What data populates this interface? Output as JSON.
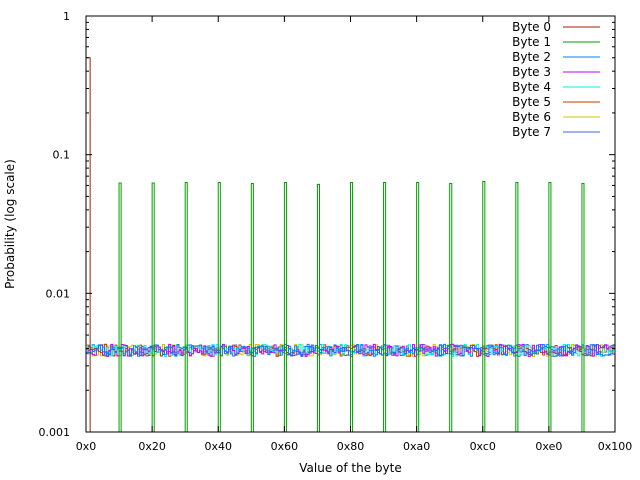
{
  "chart_data": {
    "type": "line",
    "title": "",
    "xlabel": "Value of the byte",
    "ylabel": "Probability (log scale)",
    "xlim": [
      0,
      256
    ],
    "ylim": [
      0.001,
      1
    ],
    "yscale": "log",
    "step": true,
    "grid": false,
    "legend_position": "top-right",
    "x_ticks": [
      {
        "value": 0,
        "label": "0x0"
      },
      {
        "value": 32,
        "label": "0x20"
      },
      {
        "value": 64,
        "label": "0x40"
      },
      {
        "value": 96,
        "label": "0x60"
      },
      {
        "value": 128,
        "label": "0x80"
      },
      {
        "value": 160,
        "label": "0xa0"
      },
      {
        "value": 192,
        "label": "0xc0"
      },
      {
        "value": 224,
        "label": "0xe0"
      },
      {
        "value": 256,
        "label": "0x100"
      }
    ],
    "y_ticks": [
      {
        "value": 0.001,
        "label": "0.001"
      },
      {
        "value": 0.01,
        "label": "0.01"
      },
      {
        "value": 0.1,
        "label": "0.1"
      },
      {
        "value": 1,
        "label": "1"
      }
    ],
    "uniform_level": 0.0039,
    "series": [
      {
        "name": "Byte 0",
        "color": "#a02000",
        "kind": "spike",
        "peaks": [
          {
            "x": 0,
            "y": 0.5
          },
          {
            "x": 1,
            "y": 0.5
          }
        ]
      },
      {
        "name": "Byte 1",
        "color": "#00a000",
        "kind": "spike",
        "peaks": [
          {
            "x": 16,
            "y": 0.0625
          },
          {
            "x": 32,
            "y": 0.0625
          },
          {
            "x": 48,
            "y": 0.063
          },
          {
            "x": 64,
            "y": 0.063
          },
          {
            "x": 80,
            "y": 0.062
          },
          {
            "x": 96,
            "y": 0.063
          },
          {
            "x": 112,
            "y": 0.061
          },
          {
            "x": 128,
            "y": 0.063
          },
          {
            "x": 144,
            "y": 0.063
          },
          {
            "x": 160,
            "y": 0.063
          },
          {
            "x": 176,
            "y": 0.062
          },
          {
            "x": 192,
            "y": 0.064
          },
          {
            "x": 208,
            "y": 0.063
          },
          {
            "x": 224,
            "y": 0.063
          },
          {
            "x": 240,
            "y": 0.062
          }
        ]
      },
      {
        "name": "Byte 2",
        "color": "#0080ff",
        "kind": "noise",
        "mean": 0.0039
      },
      {
        "name": "Byte 3",
        "color": "#c000ff",
        "kind": "noise",
        "mean": 0.0039
      },
      {
        "name": "Byte 4",
        "color": "#00eeee",
        "kind": "noise",
        "mean": 0.0039
      },
      {
        "name": "Byte 5",
        "color": "#c04000",
        "kind": "noise",
        "mean": 0.0039
      },
      {
        "name": "Byte 6",
        "color": "#c8c800",
        "kind": "noise",
        "mean": 0.0039
      },
      {
        "name": "Byte 7",
        "color": "#4169e1",
        "kind": "noise",
        "mean": 0.0039
      }
    ]
  }
}
